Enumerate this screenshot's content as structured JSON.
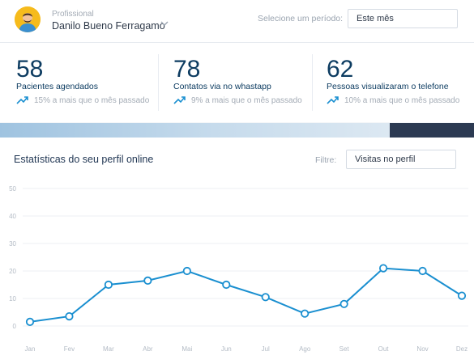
{
  "header": {
    "profile_label": "Profissional",
    "profile_name": "Danilo Bueno Ferragamo",
    "period_label": "Selecione um período:",
    "period_value": "Este mês",
    "chevron_icon": "chevron-down-icon"
  },
  "stats": [
    {
      "number": "58",
      "label": "Pacientes agendados",
      "trend": "15% a mais que o mês passado"
    },
    {
      "number": "78",
      "label": "Contatos via no whastapp",
      "trend": "9% a mais que o mês passado"
    },
    {
      "number": "62",
      "label": "Pessoas visualizaram o telefone",
      "trend": "10% a mais que o mês passado"
    }
  ],
  "chart": {
    "title": "Estatísticas do seu perfil online",
    "filter_label": "Filtre:",
    "filter_value": "Visitas no perfil"
  },
  "colors": {
    "accent": "#1a8fd0",
    "dark_blue": "#0d3c61",
    "trend_icon": "#1a8fd0"
  },
  "chart_data": {
    "type": "line",
    "categories": [
      "Jan",
      "Fev",
      "Mar",
      "Abr",
      "Mai",
      "Jun",
      "Jul",
      "Ago",
      "Set",
      "Out",
      "Nov",
      "Dez"
    ],
    "values": [
      1.5,
      3.5,
      15,
      16.5,
      20,
      15,
      10.5,
      4.5,
      8,
      21,
      20,
      11
    ],
    "ylim": [
      0,
      50
    ],
    "yticks": [
      0,
      10,
      20,
      30,
      40,
      50
    ],
    "grid": true,
    "xlabel": "",
    "ylabel": ""
  }
}
